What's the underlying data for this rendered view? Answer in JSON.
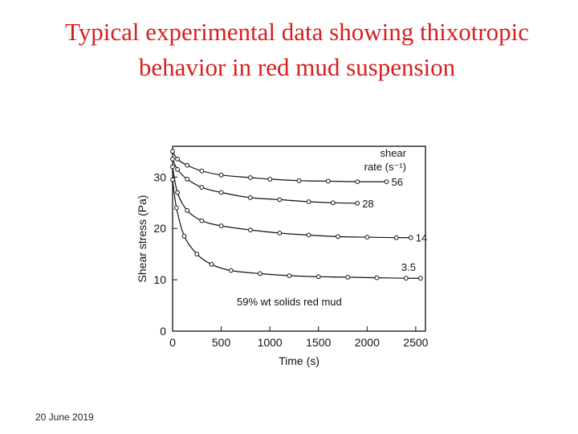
{
  "slide": {
    "title": "Typical experimental data showing thixotropic behavior in red mud suspension",
    "footer_date": "20 June 2019"
  },
  "colors": {
    "title": "#d81e1e",
    "ink": "#111111"
  },
  "chart_data": {
    "type": "line",
    "xlabel": "Time (s)",
    "ylabel": "Shear stress (Pa)",
    "xlim": [
      0,
      2600
    ],
    "ylim": [
      0,
      36
    ],
    "xticks": [
      0,
      500,
      1000,
      1500,
      2000,
      2500
    ],
    "yticks": [
      0,
      10,
      20,
      30
    ],
    "grid": false,
    "legend_title": [
      "shear",
      "rate (s⁻¹)"
    ],
    "annotation": "59% wt solids red mud",
    "series": [
      {
        "name": "56",
        "x": [
          0,
          50,
          150,
          300,
          500,
          800,
          1000,
          1300,
          1600,
          1900,
          2200
        ],
        "y": [
          35.0,
          33.5,
          32.3,
          31.2,
          30.4,
          29.9,
          29.6,
          29.3,
          29.2,
          29.1,
          29.1
        ]
      },
      {
        "name": "28",
        "x": [
          0,
          50,
          150,
          300,
          500,
          800,
          1100,
          1400,
          1650,
          1900
        ],
        "y": [
          33.5,
          31.5,
          29.6,
          28.0,
          27.0,
          26.0,
          25.6,
          25.2,
          25.0,
          24.9
        ]
      },
      {
        "name": "14",
        "x": [
          0,
          50,
          150,
          300,
          500,
          800,
          1100,
          1400,
          1700,
          2000,
          2300,
          2450
        ],
        "y": [
          32.0,
          27.0,
          23.5,
          21.5,
          20.5,
          19.7,
          19.1,
          18.7,
          18.4,
          18.3,
          18.2,
          18.2
        ]
      },
      {
        "name": "3.5",
        "x": [
          0,
          40,
          120,
          250,
          400,
          600,
          900,
          1200,
          1500,
          1800,
          2100,
          2400,
          2550
        ],
        "y": [
          29.5,
          24.0,
          18.5,
          15.0,
          13.0,
          11.8,
          11.2,
          10.8,
          10.6,
          10.5,
          10.4,
          10.3,
          10.3
        ]
      }
    ]
  }
}
